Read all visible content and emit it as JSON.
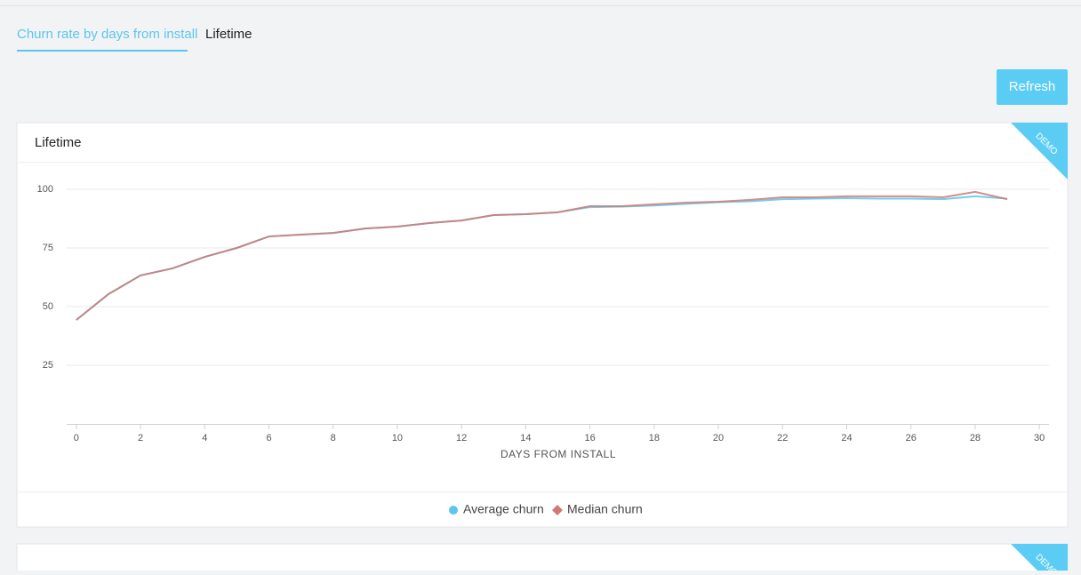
{
  "tabs": [
    "Churn rate by days from install",
    "Lifetime"
  ],
  "refresh_button": "Refresh",
  "badges": [
    "DEMO",
    "DEMO"
  ],
  "chart_data": {
    "type": "line",
    "title": "Lifetime",
    "x_label": "DAYS FROM INSTALL",
    "x": [
      0,
      1,
      2,
      3,
      4,
      5,
      6,
      7,
      8,
      9,
      10,
      11,
      12,
      13,
      14,
      15,
      16,
      17,
      18,
      19,
      20,
      21,
      22,
      23,
      24,
      25,
      26,
      27,
      28,
      29
    ],
    "series": [
      {
        "name": "Average churn",
        "color": "#5bc6ec",
        "marker": "circle",
        "values": [
          44.3,
          55.3,
          63.3,
          66.3,
          71.2,
          75,
          79.9,
          80.7,
          81.4,
          83.3,
          84.1,
          85.6,
          86.7,
          89,
          89.4,
          90.2,
          92.4,
          92.6,
          93.1,
          93.8,
          94.5,
          94.9,
          95.8,
          96,
          96.2,
          96,
          96,
          95.8,
          97,
          96
        ]
      },
      {
        "name": "Median churn",
        "color": "#cf7a74",
        "marker": "diamond",
        "values": [
          44.3,
          55.3,
          63.3,
          66.3,
          71.2,
          75,
          79.9,
          80.7,
          81.4,
          83.3,
          84.1,
          85.6,
          86.7,
          89,
          89.4,
          90.2,
          92.8,
          92.8,
          93.6,
          94.3,
          94.7,
          95.5,
          96.6,
          96.6,
          97,
          97,
          97,
          96.6,
          98.9,
          95.8
        ]
      }
    ],
    "xlim": [
      -0.3,
      30.3
    ],
    "ylim": [
      0,
      100
    ],
    "xticks": [
      0,
      2,
      4,
      6,
      8,
      10,
      12,
      14,
      16,
      18,
      20,
      22,
      24,
      26,
      28,
      30
    ],
    "yticks": [
      25,
      50,
      75,
      100
    ],
    "grid": true
  }
}
